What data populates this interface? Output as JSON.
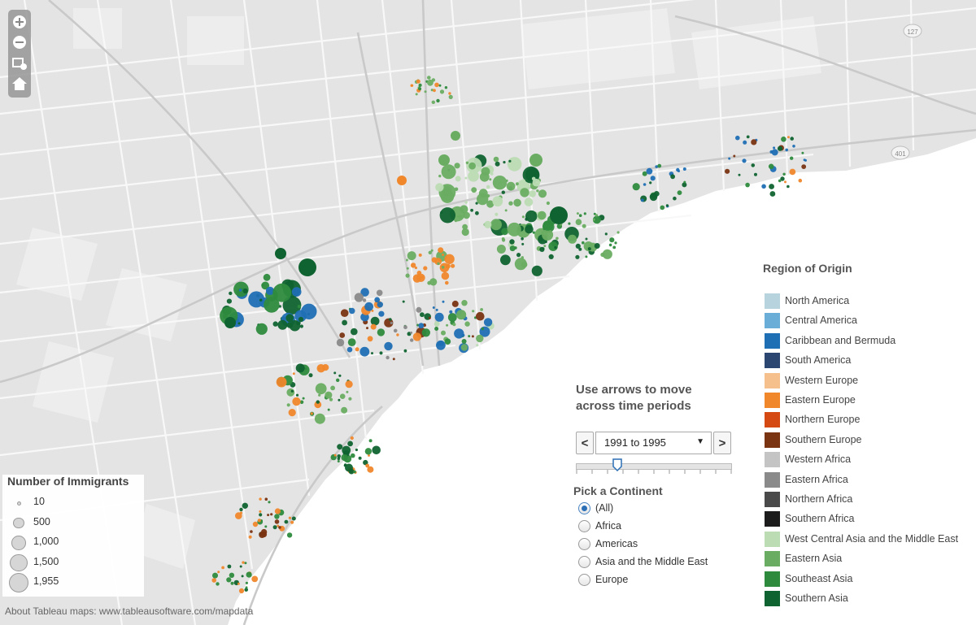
{
  "map_controls": [
    {
      "name": "zoom-in",
      "icon": "plus-icon"
    },
    {
      "name": "zoom-out",
      "icon": "minus-icon"
    },
    {
      "name": "zoom-area",
      "icon": "zoom-rectangle-icon"
    },
    {
      "name": "reset-view",
      "icon": "home-icon"
    }
  ],
  "map_labels": {
    "highway_shields": [
      "127",
      "401"
    ]
  },
  "size_legend": {
    "title": "Number of Immigrants",
    "items": [
      {
        "label": "10",
        "value": 10
      },
      {
        "label": "500",
        "value": 500
      },
      {
        "label": "1,000",
        "value": 1000
      },
      {
        "label": "1,500",
        "value": 1500
      },
      {
        "label": "1,955",
        "value": 1955
      }
    ]
  },
  "attribution": "About Tableau maps: www.tableausoftware.com/mapdata",
  "region_legend": {
    "title": "Region of Origin",
    "items": [
      {
        "label": "North America",
        "color": "#b6d3de"
      },
      {
        "label": "Central America",
        "color": "#6aaed8"
      },
      {
        "label": "Caribbean and Bermuda",
        "color": "#1f6fb4"
      },
      {
        "label": "South America",
        "color": "#2b4670"
      },
      {
        "label": "Western Europe",
        "color": "#f5c08c"
      },
      {
        "label": "Eastern Europe",
        "color": "#f0872b"
      },
      {
        "label": "Northern Europe",
        "color": "#d44a12"
      },
      {
        "label": "Southern Europe",
        "color": "#7a3412"
      },
      {
        "label": "Western Africa",
        "color": "#c4c4c4"
      },
      {
        "label": "Eastern Africa",
        "color": "#8a8a8a"
      },
      {
        "label": "Northern Africa",
        "color": "#4a4a4a"
      },
      {
        "label": "Southern Africa",
        "color": "#1c1c1c"
      },
      {
        "label": "West Central Asia and the Middle East",
        "color": "#bcdcb4"
      },
      {
        "label": "Eastern Asia",
        "color": "#6aad62"
      },
      {
        "label": "Southeast Asia",
        "color": "#2e8b3e"
      },
      {
        "label": "Southern Asia",
        "color": "#0f6330"
      }
    ]
  },
  "time_control": {
    "title": "Use arrows to move across time periods",
    "prev_label": "<",
    "next_label": ">",
    "selected_period": "1991 to 1995",
    "slider_fraction": 0.27
  },
  "continent_filter": {
    "title": "Pick a Continent",
    "options": [
      "(All)",
      "Africa",
      "Americas",
      "Asia and the Middle East",
      "Europe"
    ],
    "selected": "(All)"
  },
  "colors": {
    "land": "#e3e3e3",
    "water": "#ffffff",
    "roads": "#ffffff"
  }
}
